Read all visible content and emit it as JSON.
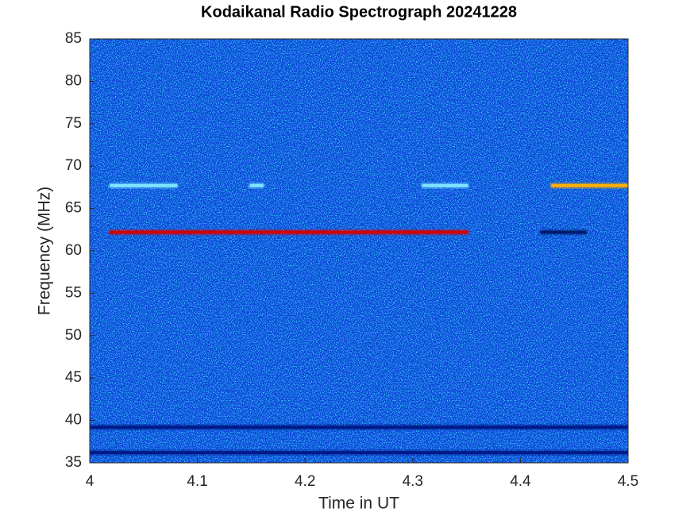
{
  "chart_data": {
    "type": "spectrogram",
    "title": "Kodaikanal Radio Spectrograph  20241228",
    "xlabel": "Time in UT",
    "ylabel": "Frequency (MHz)",
    "xlim": [
      4,
      4.5
    ],
    "ylim": [
      35,
      85
    ],
    "xticks": [
      4,
      4.1,
      4.2,
      4.3,
      4.4,
      4.5
    ],
    "yticks": [
      35,
      40,
      45,
      50,
      55,
      60,
      65,
      70,
      75,
      80,
      85
    ],
    "background": "#0b3fd6",
    "features": [
      {
        "y": 62.2,
        "x": [
          4.02,
          4.35
        ],
        "color": "#d40000"
      },
      {
        "y": 62.2,
        "x": [
          4.42,
          4.46
        ],
        "color": "#001a6e"
      },
      {
        "y": 67.7,
        "x": [
          4.02,
          4.08
        ],
        "color": "#7fe6ff"
      },
      {
        "y": 67.7,
        "x": [
          4.15,
          4.16
        ],
        "color": "#7fe6ff"
      },
      {
        "y": 67.7,
        "x": [
          4.31,
          4.35
        ],
        "color": "#7fe6ff"
      },
      {
        "y": 67.7,
        "x": [
          4.43,
          4.5
        ],
        "color": "#ffb000"
      },
      {
        "y": 39.2,
        "x": [
          4,
          4.5
        ],
        "color": "#001a8a"
      },
      {
        "y": 36.2,
        "x": [
          4,
          4.5
        ],
        "color": "#001a8a"
      }
    ]
  }
}
